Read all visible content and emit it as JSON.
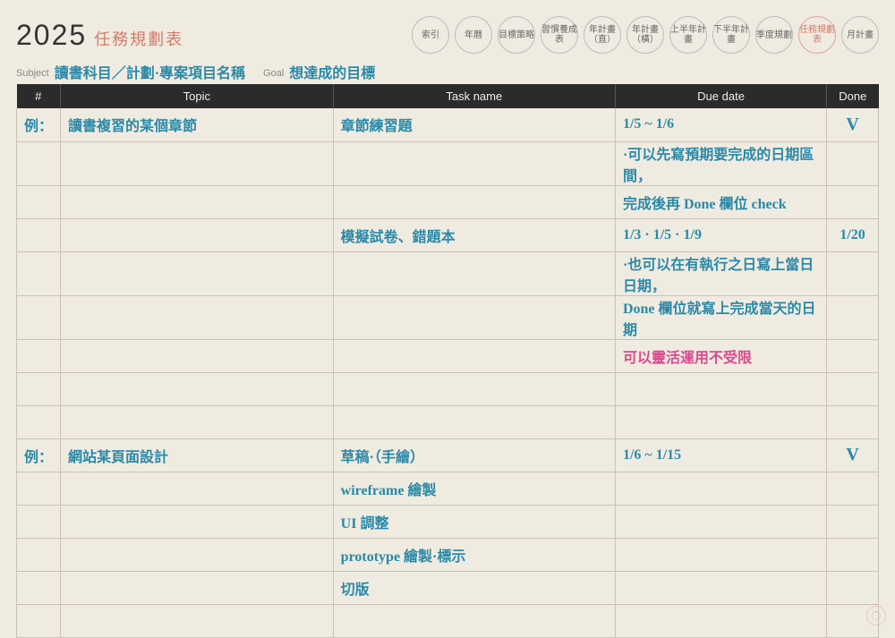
{
  "colors": {
    "page_bg": "#f0ebe1",
    "accent": "#d47a68",
    "header_bg": "#2b2b2b",
    "header_fg": "#eeeeee",
    "grid": "#c9c2b5",
    "hand_blue": "#2a8aa8",
    "hand_pink": "#d94a8c",
    "muted": "#888888"
  },
  "header": {
    "year": "2025",
    "title": "任務規劃表",
    "tabs": [
      "索引",
      "年曆",
      "目標策略",
      "習慣養成表",
      "年計畫（直）",
      "年計畫（橫）",
      "上半年計畫",
      "下半年計畫",
      "季度規劃",
      "任務規劃表",
      "月計畫"
    ],
    "active_tab_index": 9
  },
  "subject_goal": {
    "subject_label": "Subject",
    "subject_value": "讀書科目／計劃·專案項目名稱",
    "goal_label": "Goal",
    "goal_value": "想達成的目標"
  },
  "table": {
    "columns": [
      "#",
      "Topic",
      "Task name",
      "Due date",
      "Done"
    ],
    "rows": [
      {
        "num": "例：",
        "topic": "讀書複習的某個章節",
        "task": "章節練習題",
        "due": "1/5 ~ 1/6",
        "done": "V",
        "colors": {
          "num": "#2a8aa8",
          "topic": "#2a8aa8",
          "task": "#2a8aa8",
          "due": "#2a8aa8",
          "done": "#2a8aa8"
        }
      },
      {
        "num": "",
        "topic": "",
        "task": "",
        "due": "·可以先寫預期要完成的日期區間，",
        "done": "",
        "colors": {
          "due": "#2a8aa8"
        }
      },
      {
        "num": "",
        "topic": "",
        "task": "",
        "due": "完成後再 Done 欄位 check",
        "done": "",
        "colors": {
          "due": "#2a8aa8"
        }
      },
      {
        "num": "",
        "topic": "",
        "task": "模擬試卷、錯題本",
        "due": "1/3 · 1/5 · 1/9",
        "done": "1/20",
        "colors": {
          "task": "#2a8aa8",
          "due": "#2a8aa8",
          "done": "#2a8aa8"
        }
      },
      {
        "num": "",
        "topic": "",
        "task": "",
        "due": "·也可以在有執行之日寫上當日日期，",
        "done": "",
        "colors": {
          "due": "#2a8aa8"
        }
      },
      {
        "num": "",
        "topic": "",
        "task": "",
        "due": "Done 欄位就寫上完成當天的日期",
        "done": "",
        "colors": {
          "due": "#2a8aa8"
        }
      },
      {
        "num": "",
        "topic": "",
        "task": "",
        "due": "可以靈活運用不受限",
        "done": "",
        "colors": {
          "due": "#d94a8c"
        }
      },
      {
        "num": "",
        "topic": "",
        "task": "",
        "due": "",
        "done": ""
      },
      {
        "num": "",
        "topic": "",
        "task": "",
        "due": "",
        "done": ""
      },
      {
        "num": "例：",
        "topic": "網站某頁面設計",
        "task": "草稿·（手繪）",
        "due": "1/6 ~ 1/15",
        "done": "V",
        "colors": {
          "num": "#2a8aa8",
          "topic": "#2a8aa8",
          "task": "#2a8aa8",
          "due": "#2a8aa8",
          "done": "#2a8aa8"
        }
      },
      {
        "num": "",
        "topic": "",
        "task": "wireframe 繪製",
        "due": "",
        "done": "",
        "colors": {
          "task": "#2a8aa8"
        }
      },
      {
        "num": "",
        "topic": "",
        "task": "UI 調整",
        "due": "",
        "done": "",
        "colors": {
          "task": "#2a8aa8"
        }
      },
      {
        "num": "",
        "topic": "",
        "task": "prototype 繪製·標示",
        "due": "",
        "done": "",
        "colors": {
          "task": "#2a8aa8"
        }
      },
      {
        "num": "",
        "topic": "",
        "task": "切版",
        "due": "",
        "done": "",
        "colors": {
          "task": "#2a8aa8"
        }
      },
      {
        "num": "",
        "topic": "",
        "task": "",
        "due": "",
        "done": ""
      }
    ]
  }
}
